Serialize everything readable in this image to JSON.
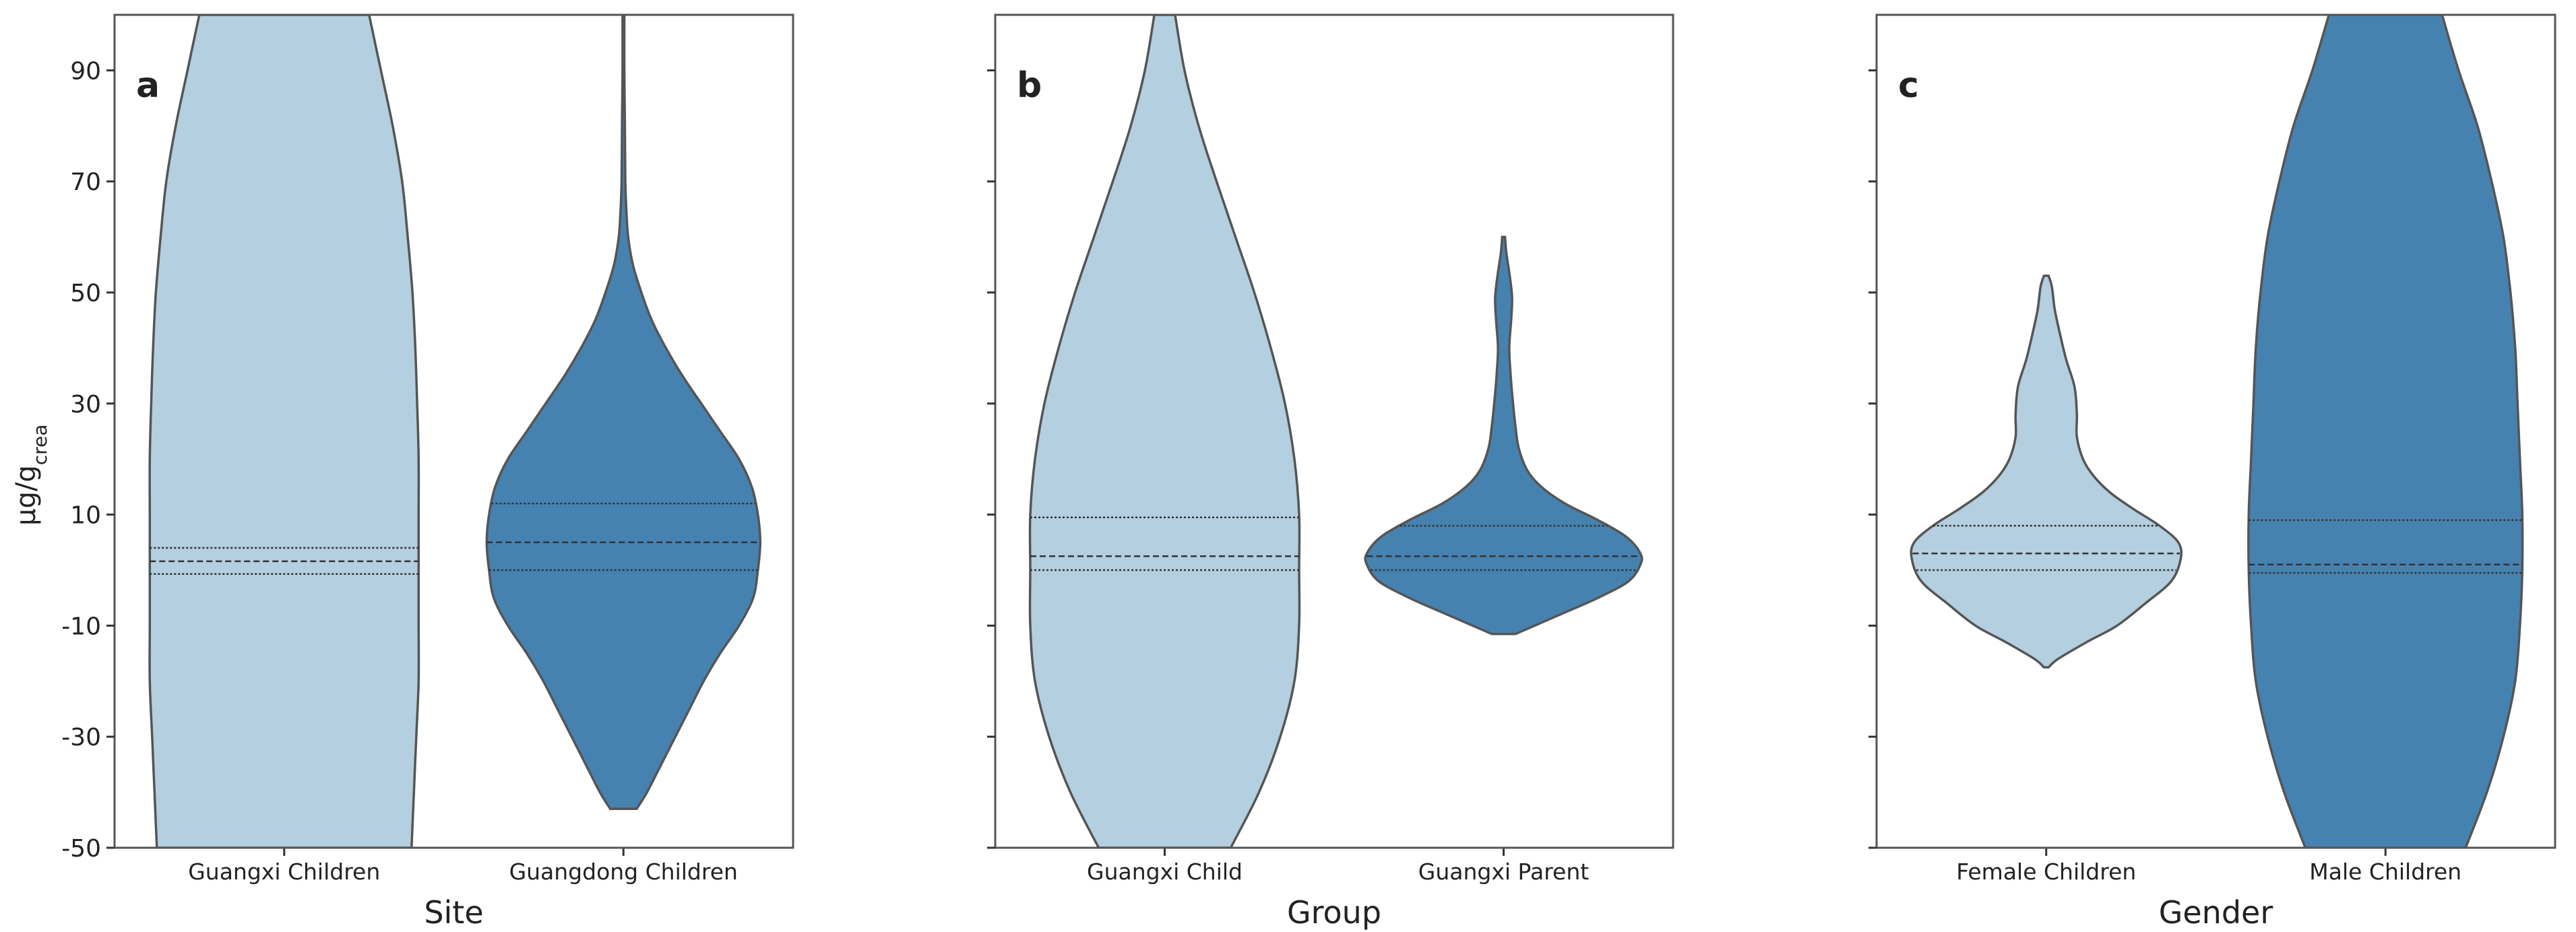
{
  "chart_data": {
    "type": "violin",
    "ylabel_main": "μg/g",
    "ylabel_sub": "crea",
    "ylim": [
      -50,
      100
    ],
    "yticks": [
      -50,
      -30,
      -10,
      10,
      30,
      50,
      70,
      90
    ],
    "colors": {
      "light": "#b3cfe0",
      "dark": "#4682b0",
      "outline": "#555555",
      "frame": "#555555"
    },
    "panels": [
      {
        "letter": "a",
        "xlabel": "Site",
        "violins": [
          {
            "category": "Guangxi Children",
            "color": "light",
            "quartiles": {
              "q1": -0.7,
              "median": 1.6,
              "q3": 4
            },
            "profile": [
              [
                -50,
                2.7
              ],
              [
                -40,
                2.75
              ],
              [
                -30,
                2.8
              ],
              [
                -20,
                2.85
              ],
              [
                -10,
                2.85
              ],
              [
                0,
                2.85
              ],
              [
                10,
                2.85
              ],
              [
                20,
                2.85
              ],
              [
                30,
                2.82
              ],
              [
                40,
                2.78
              ],
              [
                50,
                2.72
              ],
              [
                60,
                2.62
              ],
              [
                70,
                2.5
              ],
              [
                80,
                2.3
              ],
              [
                90,
                2.05
              ],
              [
                100,
                1.8
              ]
            ]
          },
          {
            "category": "Guangdong Children",
            "color": "dark",
            "quartiles": {
              "q1": 0,
              "median": 5,
              "q3": 12
            },
            "profile": [
              [
                -43,
                0.28
              ],
              [
                -40,
                0.5
              ],
              [
                -35,
                0.8
              ],
              [
                -30,
                1.1
              ],
              [
                -25,
                1.4
              ],
              [
                -20,
                1.7
              ],
              [
                -15,
                2.05
              ],
              [
                -10,
                2.45
              ],
              [
                -5,
                2.75
              ],
              [
                0,
                2.85
              ],
              [
                5,
                2.9
              ],
              [
                10,
                2.85
              ],
              [
                15,
                2.72
              ],
              [
                20,
                2.45
              ],
              [
                25,
                2.05
              ],
              [
                30,
                1.65
              ],
              [
                35,
                1.25
              ],
              [
                40,
                0.9
              ],
              [
                45,
                0.6
              ],
              [
                50,
                0.38
              ],
              [
                55,
                0.2
              ],
              [
                60,
                0.1
              ],
              [
                65,
                0.06
              ],
              [
                70,
                0.04
              ],
              [
                80,
                0.03
              ],
              [
                90,
                0.02
              ],
              [
                100,
                0.02
              ]
            ]
          }
        ]
      },
      {
        "letter": "b",
        "xlabel": "Group",
        "violins": [
          {
            "category": "Guangxi Child",
            "color": "light",
            "quartiles": {
              "q1": 0,
              "median": 2.5,
              "q3": 9.5
            },
            "profile": [
              [
                -50,
                1.4
              ],
              [
                -40,
                2.0
              ],
              [
                -30,
                2.45
              ],
              [
                -20,
                2.75
              ],
              [
                -10,
                2.85
              ],
              [
                0,
                2.85
              ],
              [
                10,
                2.85
              ],
              [
                20,
                2.75
              ],
              [
                30,
                2.55
              ],
              [
                40,
                2.25
              ],
              [
                50,
                1.9
              ],
              [
                60,
                1.5
              ],
              [
                70,
                1.1
              ],
              [
                80,
                0.72
              ],
              [
                90,
                0.42
              ],
              [
                100,
                0.22
              ]
            ]
          },
          {
            "category": "Guangxi Parent",
            "color": "dark",
            "quartiles": {
              "q1": 0,
              "median": 2.5,
              "q3": 8
            },
            "profile": [
              [
                -11.5,
                0.25
              ],
              [
                -8,
                1.2
              ],
              [
                -5,
                2.0
              ],
              [
                -2,
                2.65
              ],
              [
                1,
                2.9
              ],
              [
                3,
                2.9
              ],
              [
                6,
                2.6
              ],
              [
                9,
                2.0
              ],
              [
                12,
                1.3
              ],
              [
                15,
                0.8
              ],
              [
                18,
                0.5
              ],
              [
                22,
                0.32
              ],
              [
                26,
                0.25
              ],
              [
                30,
                0.2
              ],
              [
                35,
                0.15
              ],
              [
                40,
                0.12
              ],
              [
                45,
                0.16
              ],
              [
                49,
                0.18
              ],
              [
                53,
                0.13
              ],
              [
                57,
                0.06
              ],
              [
                60,
                0.03
              ]
            ]
          }
        ]
      },
      {
        "letter": "c",
        "xlabel": "Gender",
        "violins": [
          {
            "category": "Female Children",
            "color": "light",
            "quartiles": {
              "q1": 0,
              "median": 3,
              "q3": 8
            },
            "profile": [
              [
                -17.5,
                0.05
              ],
              [
                -16,
                0.25
              ],
              [
                -13,
                0.85
              ],
              [
                -10,
                1.5
              ],
              [
                -6,
                2.1
              ],
              [
                -2,
                2.65
              ],
              [
                2,
                2.85
              ],
              [
                5,
                2.8
              ],
              [
                8,
                2.4
              ],
              [
                11,
                1.85
              ],
              [
                14,
                1.35
              ],
              [
                17,
                1.0
              ],
              [
                20,
                0.78
              ],
              [
                24,
                0.65
              ],
              [
                28,
                0.65
              ],
              [
                33,
                0.6
              ],
              [
                38,
                0.42
              ],
              [
                43,
                0.28
              ],
              [
                47,
                0.18
              ],
              [
                51,
                0.12
              ],
              [
                53,
                0.05
              ]
            ]
          },
          {
            "category": "Male Children",
            "color": "dark",
            "quartiles": {
              "q1": -0.5,
              "median": 1,
              "q3": 9
            },
            "profile": [
              [
                -50,
                1.7
              ],
              [
                -40,
                2.15
              ],
              [
                -30,
                2.5
              ],
              [
                -20,
                2.75
              ],
              [
                -10,
                2.85
              ],
              [
                0,
                2.9
              ],
              [
                10,
                2.9
              ],
              [
                20,
                2.85
              ],
              [
                30,
                2.8
              ],
              [
                40,
                2.75
              ],
              [
                50,
                2.65
              ],
              [
                60,
                2.5
              ],
              [
                70,
                2.25
              ],
              [
                80,
                1.95
              ],
              [
                90,
                1.55
              ],
              [
                100,
                1.2
              ]
            ]
          }
        ]
      }
    ]
  }
}
